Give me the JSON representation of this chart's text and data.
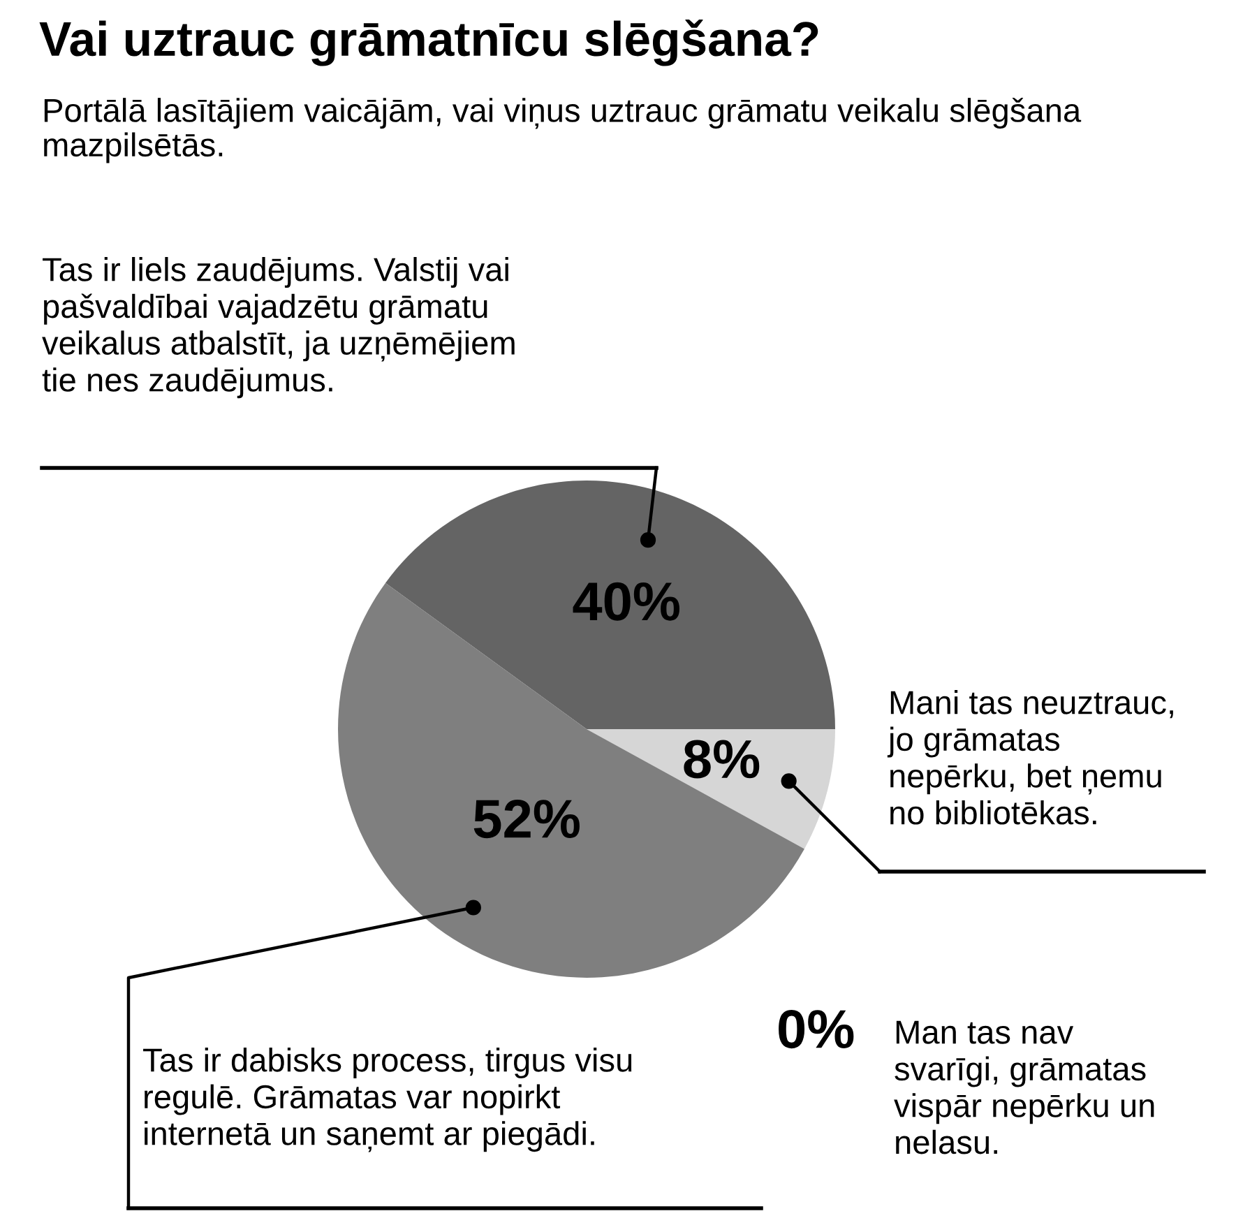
{
  "chart_data": {
    "type": "pie",
    "title": "Vai uztrauc grāmatnīcu slēgšana?",
    "subtitle": "Portālā lasītājiem vaicājām, vai viņus uztrauc grāmatu veikalu slēgšana mazpilsētās.",
    "categories": [
      "Tas ir liels zaudējums. Valstij vai\npašvaldībai vajadzētu grāmatu\nveikalus atbalstīt, ja uzņēmējiem\ntie nes zaudējumus.",
      "Mani tas neuztrauc,\njo grāmatas\nnepērku, bet ņemu\nno bibliotēkas.",
      "Tas ir dabisks process, tirgus visu\nregulē. Grāmatas var nopirkt\ninternetā un saņemt ar piegādi.",
      "Man tas nav\nsvarīgi, grāmatas\nvispār nepērku un\nnelasu."
    ],
    "values": [
      40,
      8,
      52,
      0
    ],
    "colors": [
      "#646464",
      "#d6d6d6",
      "#7f7f7f",
      null
    ],
    "value_labels": [
      "40%",
      "8%",
      "52%",
      "0%"
    ]
  }
}
